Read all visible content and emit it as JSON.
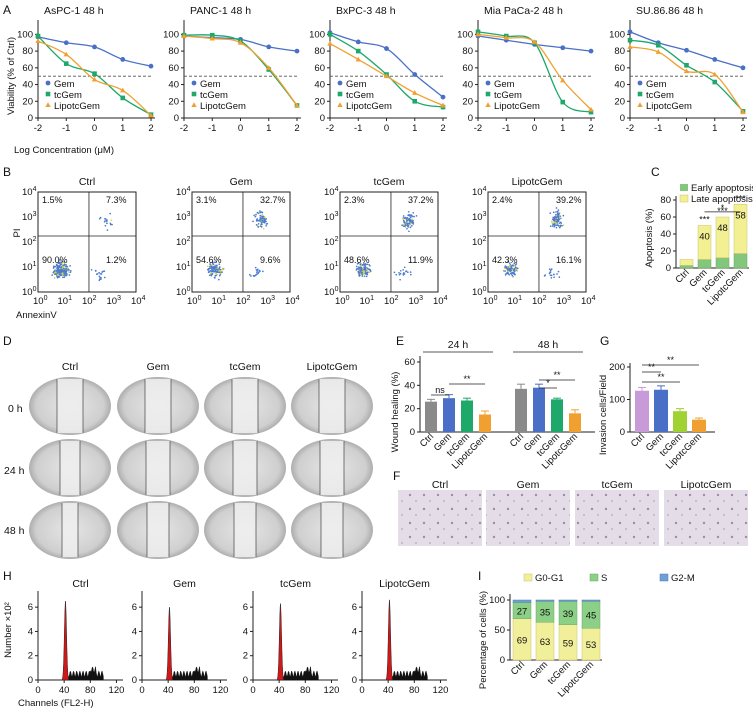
{
  "figure": {
    "colors": {
      "gem": "#4a6fc7",
      "tcgem": "#1ea86a",
      "lipo": "#f0a030",
      "ctrl_bar": "#8a8a8a",
      "purple_bar": "#c99ad8",
      "lime_bar": "#9fd232",
      "early": "#82c77b",
      "late": "#f3ef93",
      "g0g1": "#f2ef9a",
      "s": "#8ccf86",
      "g2m": "#6f9fd6",
      "peak": "#d01818"
    },
    "panelA": {
      "letter": "A",
      "ylabel": "Viability (% of Ctrl)",
      "xlabel": "Log Concentration (μM)",
      "xticks": [
        "-2",
        "-1",
        "0",
        "1",
        "2"
      ],
      "yticks": [
        "0",
        "20",
        "40",
        "60",
        "80",
        "100"
      ],
      "legend": [
        "Gem",
        "tcGem",
        "LipotcGem"
      ]
    },
    "panelB": {
      "letter": "B",
      "xlabel": "AnnexinV",
      "ylabel": "PI",
      "ticks": [
        "10",
        "10",
        "10",
        "10",
        "10"
      ],
      "exps": [
        "0",
        "1",
        "2",
        "3",
        "4"
      ]
    },
    "panelC": {
      "letter": "C",
      "ylabel": "Apoptosis (%)",
      "star_label": "*"
    },
    "panelD": {
      "letter": "D",
      "cols": [
        "Ctrl",
        "Gem",
        "tcGem",
        "LipotcGem"
      ],
      "rows": [
        "0 h",
        "24 h",
        "48 h"
      ]
    },
    "panelE": {
      "letter": "E",
      "ylabel": "Wound healing (%)",
      "group_labels": [
        "24 h",
        "48 h"
      ]
    },
    "panelF": {
      "letter": "F",
      "labels": [
        "Ctrl",
        "Gem",
        "tcGem",
        "LipotcGem"
      ]
    },
    "panelG": {
      "letter": "G",
      "ylabel": "Invasion cells/Field"
    },
    "panelH": {
      "letter": "H",
      "ylabel": "Number ×10²",
      "xlabel": "Channels (FL2-H)"
    },
    "panelI": {
      "letter": "I",
      "ylabel": "Percentage of cells (%)"
    }
  },
  "chart_data": [
    {
      "id": "A-dose-response",
      "type": "line",
      "x": [
        -2,
        -1,
        0,
        1,
        2
      ],
      "xlim": [
        -2,
        2
      ],
      "ylim": [
        0,
        110
      ],
      "reference_line_y": 50,
      "panels": [
        {
          "title": "AsPC-1  48 h",
          "series": [
            {
              "name": "Gem",
              "values": [
                97,
                90,
                85,
                70,
                62
              ]
            },
            {
              "name": "tcGem",
              "values": [
                98,
                65,
                53,
                24,
                4
              ]
            },
            {
              "name": "LipotcGem",
              "values": [
                92,
                76,
                46,
                33,
                3
              ]
            }
          ]
        },
        {
          "title": "PANC-1  48 h",
          "series": [
            {
              "name": "Gem",
              "values": [
                98,
                96,
                94,
                85,
                80
              ]
            },
            {
              "name": "tcGem",
              "values": [
                99,
                99,
                92,
                58,
                15
              ]
            },
            {
              "name": "LipotcGem",
              "values": [
                98,
                95,
                90,
                60,
                15
              ]
            }
          ]
        },
        {
          "title": "BxPC-3  48 h",
          "series": [
            {
              "name": "Gem",
              "values": [
                102,
                91,
                83,
                52,
                25
              ]
            },
            {
              "name": "tcGem",
              "values": [
                100,
                80,
                52,
                20,
                13
              ]
            },
            {
              "name": "LipotcGem",
              "values": [
                89,
                70,
                50,
                30,
                15
              ]
            }
          ]
        },
        {
          "title": "Mia PaCa-2  48 h",
          "series": [
            {
              "name": "Gem",
              "values": [
                98,
                93,
                88,
                84,
                80
              ]
            },
            {
              "name": "tcGem",
              "values": [
                103,
                98,
                90,
                19,
                7
              ]
            },
            {
              "name": "LipotcGem",
              "values": [
                100,
                96,
                91,
                45,
                10
              ]
            }
          ]
        },
        {
          "title": "SU.86.86  48 h",
          "series": [
            {
              "name": "Gem",
              "values": [
                103,
                90,
                81,
                70,
                60
              ]
            },
            {
              "name": "tcGem",
              "values": [
                93,
                87,
                63,
                43,
                8
              ]
            },
            {
              "name": "LipotcGem",
              "values": [
                85,
                79,
                56,
                52,
                7
              ]
            }
          ]
        }
      ]
    },
    {
      "id": "B-flow",
      "type": "scatter",
      "xlabel": "AnnexinV",
      "ylabel": "PI",
      "panels": [
        {
          "title": "Ctrl",
          "quadrants": [
            "1.5%",
            "7.3%",
            "90.0%",
            "1.2%"
          ]
        },
        {
          "title": "Gem",
          "quadrants": [
            "3.1%",
            "32.7%",
            "54.6%",
            "9.6%"
          ]
        },
        {
          "title": "tcGem",
          "quadrants": [
            "2.3%",
            "37.2%",
            "48.6%",
            "11.9%"
          ]
        },
        {
          "title": "LipotcGem",
          "quadrants": [
            "2.4%",
            "39.2%",
            "42.3%",
            "16.1%"
          ]
        }
      ]
    },
    {
      "id": "C-apoptosis",
      "type": "bar",
      "stacked": true,
      "categories": [
        "Ctrl",
        "Gem",
        "tcGem",
        "LipotcGem"
      ],
      "ylim": [
        0,
        80
      ],
      "yticks": [
        "0",
        "20",
        "40",
        "60",
        "80"
      ],
      "series": [
        {
          "name": "Early apoptosis",
          "values": [
            3,
            10,
            12,
            17
          ]
        },
        {
          "name": "Late apoptosis",
          "values": [
            7,
            40,
            48,
            58
          ]
        }
      ],
      "labels": [
        "40",
        "48",
        "58"
      ],
      "significance": [
        "***",
        "***",
        "***"
      ]
    },
    {
      "id": "E-wound",
      "type": "bar",
      "categories": [
        "Ctrl",
        "Gem",
        "tcGem",
        "LipotcGem"
      ],
      "ylim": [
        0,
        60
      ],
      "yticks": [
        "0",
        "20",
        "40",
        "60"
      ],
      "groups": [
        {
          "name": "24 h",
          "values": [
            26,
            29,
            27,
            15
          ],
          "errors": [
            2,
            3,
            2,
            3
          ]
        },
        {
          "name": "48 h",
          "values": [
            37,
            38,
            28,
            16
          ],
          "errors": [
            4,
            3,
            1,
            3
          ]
        }
      ],
      "significance": [
        "ns",
        "**",
        "*",
        "**"
      ]
    },
    {
      "id": "G-invasion",
      "type": "bar",
      "categories": [
        "Ctrl",
        "Gem",
        "tcGem",
        "LipotcGem"
      ],
      "values": [
        127,
        130,
        64,
        38
      ],
      "errors": [
        10,
        12,
        8,
        5
      ],
      "ylim": [
        0,
        200
      ],
      "yticks": [
        "0",
        "100",
        "200"
      ],
      "significance": [
        "**",
        "**",
        "**"
      ]
    },
    {
      "id": "H-cellcycle",
      "type": "area",
      "panels": [
        "Ctrl",
        "Gem",
        "tcGem",
        "LipotcGem"
      ],
      "xticks": [
        "0",
        "40",
        "80",
        "120"
      ],
      "xlim": [
        0,
        130
      ],
      "yticks": [
        "0",
        "2",
        "4",
        "6"
      ],
      "ylim": [
        0,
        7
      ],
      "peaks": [
        {
          "g1_x": 42,
          "g1_height": 6.5,
          "g2_x": 84
        },
        {
          "g1_x": 42,
          "g1_height": 6.0,
          "g2_x": 84
        },
        {
          "g1_x": 42,
          "g1_height": 6.3,
          "g2_x": 84
        },
        {
          "g1_x": 42,
          "g1_height": 6.6,
          "g2_x": 84
        }
      ]
    },
    {
      "id": "I-phase",
      "type": "bar",
      "stacked": true,
      "categories": [
        "Ctrl",
        "Gem",
        "tcGem",
        "LipotcGem"
      ],
      "ylim": [
        0,
        100
      ],
      "yticks": [
        "0",
        "50",
        "100"
      ],
      "series": [
        {
          "name": "G0-G1",
          "values": [
            69,
            63,
            59,
            53
          ],
          "labels": [
            "69",
            "63",
            "59",
            "53"
          ]
        },
        {
          "name": "S",
          "values": [
            27,
            35,
            39,
            45
          ],
          "labels": [
            "27",
            "35",
            "39",
            "45"
          ]
        },
        {
          "name": "G2-M",
          "values": [
            4,
            2,
            2,
            2
          ]
        }
      ]
    }
  ]
}
